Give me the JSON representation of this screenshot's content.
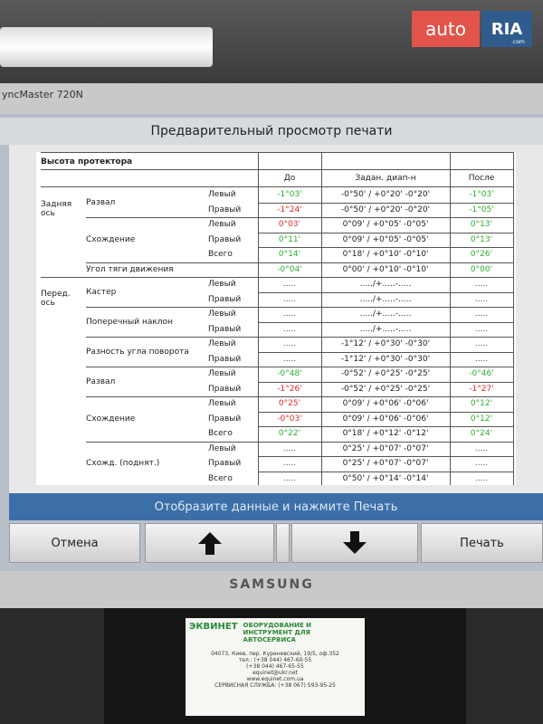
{
  "watermark": {
    "brand": "auto",
    "brand_box": "RIA",
    "suffix": ".com"
  },
  "monitor": {
    "model": "yncMaster 720N",
    "brand": "SAMSUNG"
  },
  "window": {
    "title": "Предварительный просмотр печати",
    "table": {
      "section": "Высота протектора",
      "headers": {
        "before": "До",
        "range": "Задан. диап-н",
        "after": "После"
      },
      "groups": [
        {
          "label": "Задняя ось",
          "items": [
            {
              "label": "Развал",
              "rows": [
                {
                  "side": "Левый",
                  "before": "-1°03'",
                  "before_color": "#2fae2f",
                  "range": "-0°50' / +0°20' -0°20'",
                  "after": "-1°03'",
                  "after_color": "#2fae2f"
                },
                {
                  "side": "Правый",
                  "before": "-1°24'",
                  "before_color": "#e02a2a",
                  "range": "-0°50' / +0°20' -0°20'",
                  "after": "-1°05'",
                  "after_color": "#2fae2f"
                }
              ]
            },
            {
              "label": "Схождение",
              "rows": [
                {
                  "side": "Левый",
                  "before": "0°03'",
                  "before_color": "#e02a2a",
                  "range": "0°09' / +0°05' -0°05'",
                  "after": "0°13'",
                  "after_color": "#2fae2f"
                },
                {
                  "side": "Правый",
                  "before": "0°11'",
                  "before_color": "#2fae2f",
                  "range": "0°09' / +0°05' -0°05'",
                  "after": "0°13'",
                  "after_color": "#2fae2f"
                },
                {
                  "side": "Всего",
                  "before": "0°14'",
                  "before_color": "#2fae2f",
                  "range": "0°18' / +0°10' -0°10'",
                  "after": "0°26'",
                  "after_color": "#2fae2f"
                }
              ]
            },
            {
              "label": "Угол тяги движения",
              "rows": [
                {
                  "before": "-0°04'",
                  "before_color": "#2fae2f",
                  "range": "0°00' / +0°10' -0°10'",
                  "after": "0°00'",
                  "after_color": "#2fae2f"
                }
              ]
            }
          ]
        },
        {
          "label": "Перед. ось",
          "items": [
            {
              "label": "Кастер",
              "rows": [
                {
                  "side": "Левый",
                  "before": ".....",
                  "before_color": "#444",
                  "range": "...../+.....-.....",
                  "after": ".....",
                  "after_color": "#444"
                },
                {
                  "side": "Правый",
                  "before": ".....",
                  "before_color": "#444",
                  "range": "...../+.....-.....",
                  "after": ".....",
                  "after_color": "#444"
                }
              ]
            },
            {
              "label": "Поперечный наклон",
              "rows": [
                {
                  "side": "Левый",
                  "before": ".....",
                  "before_color": "#444",
                  "range": "...../+.....-.....",
                  "after": ".....",
                  "after_color": "#444"
                },
                {
                  "side": "Правый",
                  "before": ".....",
                  "before_color": "#444",
                  "range": "...../+.....-.....",
                  "after": ".....",
                  "after_color": "#444"
                }
              ]
            },
            {
              "label": "Разность угла поворота",
              "rows": [
                {
                  "side": "Левый",
                  "before": ".....",
                  "before_color": "#444",
                  "range": "-1°12' / +0°30' -0°30'",
                  "after": ".....",
                  "after_color": "#444"
                },
                {
                  "side": "Правый",
                  "before": ".....",
                  "before_color": "#444",
                  "range": "-1°12' / +0°30' -0°30'",
                  "after": ".....",
                  "after_color": "#444"
                }
              ]
            },
            {
              "label": "Развал",
              "rows": [
                {
                  "side": "Левый",
                  "before": "-0°48'",
                  "before_color": "#2fae2f",
                  "range": "-0°52' / +0°25' -0°25'",
                  "after": "-0°46'",
                  "after_color": "#2fae2f"
                },
                {
                  "side": "Правый",
                  "before": "-1°26'",
                  "before_color": "#e02a2a",
                  "range": "-0°52' / +0°25' -0°25'",
                  "after": "-1°27'",
                  "after_color": "#e02a2a"
                }
              ]
            },
            {
              "label": "Схождение",
              "rows": [
                {
                  "side": "Левый",
                  "before": "0°25'",
                  "before_color": "#e02a2a",
                  "range": "0°09' / +0°06' -0°06'",
                  "after": "0°12'",
                  "after_color": "#2fae2f"
                },
                {
                  "side": "Правый",
                  "before": "-0°03'",
                  "before_color": "#e02a2a",
                  "range": "0°09' / +0°06' -0°06'",
                  "after": "0°12'",
                  "after_color": "#2fae2f"
                },
                {
                  "side": "Всего",
                  "before": "0°22'",
                  "before_color": "#2fae2f",
                  "range": "0°18' / +0°12' -0°12'",
                  "after": "0°24'",
                  "after_color": "#2fae2f"
                }
              ]
            },
            {
              "label": "Схожд. (поднят.)",
              "rows": [
                {
                  "side": "Левый",
                  "before": ".....",
                  "before_color": "#444",
                  "range": "0°25' / +0°07' -0°07'",
                  "after": ".....",
                  "after_color": "#444"
                },
                {
                  "side": "Правый",
                  "before": ".....",
                  "before_color": "#444",
                  "range": "0°25' / +0°07' -0°07'",
                  "after": ".....",
                  "after_color": "#444"
                },
                {
                  "side": "Всего",
                  "before": ".....",
                  "before_color": "#444",
                  "range": "0°50' / +0°14' -0°14'",
                  "after": ".....",
                  "after_color": "#444"
                }
              ]
            }
          ]
        }
      ]
    },
    "status": "Отобразите данные и нажмите Печать",
    "buttons": {
      "cancel": "Отмена",
      "print": "Печать"
    }
  },
  "sticker": {
    "logo": "ЭКВИНЕТ",
    "tagline": "ОБОРУДОВАНИЕ И ИНСТРУМЕНТ ДЛЯ АВТОСЕРВИСА",
    "lines": [
      "04073, Киев, пер. Куреневский, 19/5, оф.352",
      "тел.: (+38 044) 467-60-55",
      "(+38 044) 467-65-55",
      "equinet@ukr.net",
      "www.equinet.com.ua",
      "СЕРВИСНАЯ СЛУЖБА: (+38 067) 593-95-25"
    ]
  }
}
